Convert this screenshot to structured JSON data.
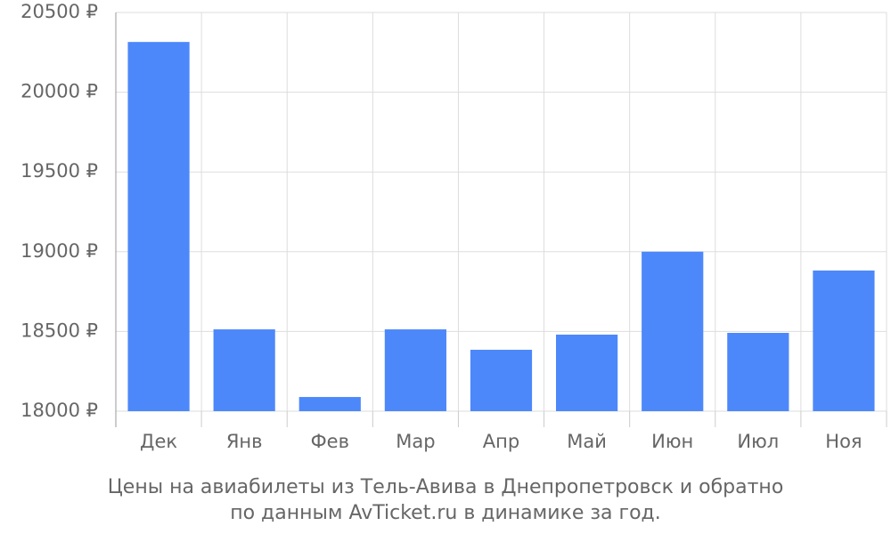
{
  "chart_data": {
    "type": "bar",
    "title": [
      "Цены на авиабилеты из Тель-Авива в Днепропетровск и обратно",
      "по данным AvTicket.ru в динамике за год."
    ],
    "categories": [
      "Дек",
      "Янв",
      "Фев",
      "Мар",
      "Апр",
      "Май",
      "Июн",
      "Июл",
      "Ноя"
    ],
    "values": [
      20315,
      18513,
      18089,
      18513,
      18385,
      18480,
      19000,
      18491,
      18882
    ],
    "color": "#4d88fa",
    "ylim": [
      18000,
      20500
    ],
    "yticks": [
      {
        "value": 18000,
        "label": "18000 ₽"
      },
      {
        "value": 18500,
        "label": "18500 ₽"
      },
      {
        "value": 19000,
        "label": "19000 ₽"
      },
      {
        "value": 19500,
        "label": "19500 ₽"
      },
      {
        "value": 20000,
        "label": "20000 ₽"
      },
      {
        "value": 20500,
        "label": "20500 ₽"
      }
    ],
    "grid": true
  }
}
